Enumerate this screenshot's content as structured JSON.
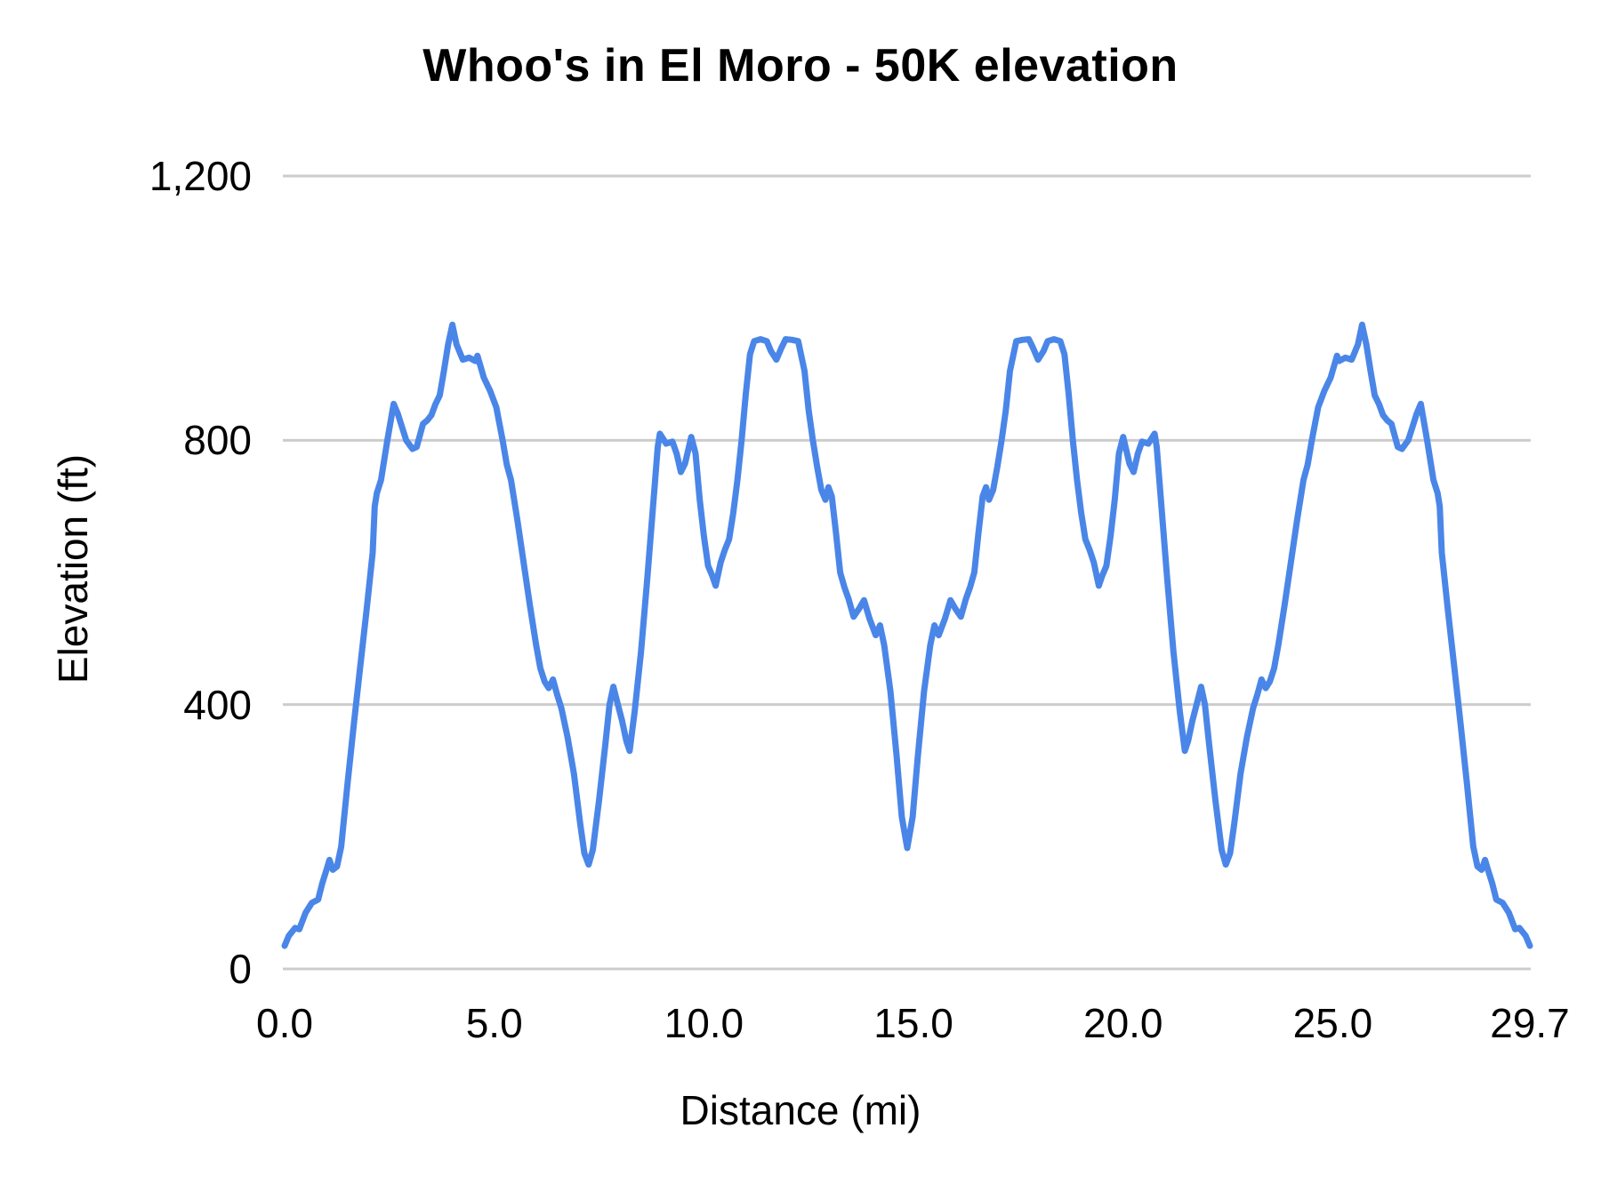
{
  "title": "Whoo's in El Moro - 50K elevation",
  "colors": {
    "line": "#4a86e8",
    "grid": "#cccccc",
    "text": "#000000",
    "background": "#ffffff"
  },
  "chart_data": {
    "type": "line",
    "title": "Whoo's in El Moro - 50K elevation",
    "xlabel": "Distance (mi)",
    "ylabel": "Elevation (ft)",
    "xlim": [
      0,
      29.7
    ],
    "ylim": [
      0,
      1200
    ],
    "grid": "horizontal-only",
    "legend": false,
    "xticks": [
      {
        "label": "0.0",
        "value": 0
      },
      {
        "label": "5.0",
        "value": 5
      },
      {
        "label": "10.0",
        "value": 10
      },
      {
        "label": "15.0",
        "value": 15
      },
      {
        "label": "20.0",
        "value": 20
      },
      {
        "label": "25.0",
        "value": 25
      },
      {
        "label": "29.7",
        "value": 29.7
      }
    ],
    "yticks": [
      {
        "label": "0",
        "value": 0
      },
      {
        "label": "400",
        "value": 400
      },
      {
        "label": "800",
        "value": 800
      },
      {
        "label": "1,200",
        "value": 1200
      }
    ],
    "series": [
      {
        "name": "Elevation",
        "color": "#4a86e8",
        "points": [
          [
            0.0,
            35
          ],
          [
            0.1,
            50
          ],
          [
            0.25,
            62
          ],
          [
            0.35,
            60
          ],
          [
            0.5,
            85
          ],
          [
            0.65,
            100
          ],
          [
            0.8,
            105
          ],
          [
            0.9,
            130
          ],
          [
            1.0,
            150
          ],
          [
            1.07,
            165
          ],
          [
            1.15,
            150
          ],
          [
            1.25,
            155
          ],
          [
            1.35,
            185
          ],
          [
            1.5,
            280
          ],
          [
            1.65,
            370
          ],
          [
            1.8,
            455
          ],
          [
            1.95,
            540
          ],
          [
            2.1,
            630
          ],
          [
            2.15,
            700
          ],
          [
            2.2,
            720
          ],
          [
            2.3,
            740
          ],
          [
            2.45,
            800
          ],
          [
            2.6,
            855
          ],
          [
            2.7,
            840
          ],
          [
            2.8,
            820
          ],
          [
            2.9,
            800
          ],
          [
            3.05,
            787
          ],
          [
            3.15,
            790
          ],
          [
            3.3,
            825
          ],
          [
            3.4,
            830
          ],
          [
            3.5,
            838
          ],
          [
            3.6,
            855
          ],
          [
            3.7,
            868
          ],
          [
            3.8,
            905
          ],
          [
            3.9,
            945
          ],
          [
            4.0,
            975
          ],
          [
            4.1,
            945
          ],
          [
            4.25,
            922
          ],
          [
            4.4,
            925
          ],
          [
            4.55,
            920
          ],
          [
            4.6,
            928
          ],
          [
            4.75,
            895
          ],
          [
            4.9,
            875
          ],
          [
            5.05,
            850
          ],
          [
            5.2,
            800
          ],
          [
            5.3,
            763
          ],
          [
            5.4,
            740
          ],
          [
            5.55,
            680
          ],
          [
            5.7,
            615
          ],
          [
            5.85,
            550
          ],
          [
            6.0,
            490
          ],
          [
            6.1,
            455
          ],
          [
            6.2,
            435
          ],
          [
            6.3,
            425
          ],
          [
            6.4,
            438
          ],
          [
            6.5,
            415
          ],
          [
            6.6,
            395
          ],
          [
            6.75,
            350
          ],
          [
            6.9,
            295
          ],
          [
            7.05,
            220
          ],
          [
            7.15,
            175
          ],
          [
            7.25,
            158
          ],
          [
            7.35,
            180
          ],
          [
            7.5,
            255
          ],
          [
            7.65,
            340
          ],
          [
            7.75,
            400
          ],
          [
            7.84,
            427
          ],
          [
            7.95,
            400
          ],
          [
            8.05,
            375
          ],
          [
            8.15,
            345
          ],
          [
            8.23,
            330
          ],
          [
            8.35,
            390
          ],
          [
            8.5,
            480
          ],
          [
            8.65,
            590
          ],
          [
            8.8,
            710
          ],
          [
            8.9,
            790
          ],
          [
            8.95,
            810
          ],
          [
            9.1,
            795
          ],
          [
            9.25,
            798
          ],
          [
            9.35,
            780
          ],
          [
            9.45,
            752
          ],
          [
            9.55,
            765
          ],
          [
            9.7,
            805
          ],
          [
            9.8,
            780
          ],
          [
            9.9,
            710
          ],
          [
            10.0,
            655
          ],
          [
            10.1,
            610
          ],
          [
            10.2,
            595
          ],
          [
            10.28,
            580
          ],
          [
            10.4,
            615
          ],
          [
            10.5,
            634
          ],
          [
            10.6,
            650
          ],
          [
            10.7,
            690
          ],
          [
            10.8,
            740
          ],
          [
            10.9,
            800
          ],
          [
            11.0,
            870
          ],
          [
            11.1,
            930
          ],
          [
            11.2,
            950
          ],
          [
            11.35,
            953
          ],
          [
            11.5,
            950
          ],
          [
            11.6,
            935
          ],
          [
            11.73,
            922
          ],
          [
            11.85,
            940
          ],
          [
            11.95,
            953
          ],
          [
            12.1,
            952
          ],
          [
            12.25,
            950
          ],
          [
            12.4,
            905
          ],
          [
            12.5,
            845
          ],
          [
            12.6,
            800
          ],
          [
            12.7,
            760
          ],
          [
            12.8,
            725
          ],
          [
            12.9,
            710
          ],
          [
            12.97,
            729
          ],
          [
            13.05,
            715
          ],
          [
            13.15,
            660
          ],
          [
            13.25,
            600
          ],
          [
            13.35,
            578
          ],
          [
            13.45,
            560
          ],
          [
            13.57,
            533
          ],
          [
            13.7,
            545
          ],
          [
            13.82,
            558
          ],
          [
            13.95,
            530
          ],
          [
            14.1,
            505
          ],
          [
            14.2,
            520
          ],
          [
            14.3,
            490
          ],
          [
            14.45,
            420
          ],
          [
            14.6,
            320
          ],
          [
            14.72,
            230
          ],
          [
            14.85,
            183
          ],
          [
            14.98,
            230
          ],
          [
            15.1,
            320
          ],
          [
            15.25,
            420
          ],
          [
            15.4,
            490
          ],
          [
            15.5,
            520
          ],
          [
            15.6,
            505
          ],
          [
            15.75,
            530
          ],
          [
            15.88,
            558
          ],
          [
            16.0,
            545
          ],
          [
            16.13,
            533
          ],
          [
            16.25,
            560
          ],
          [
            16.35,
            578
          ],
          [
            16.45,
            600
          ],
          [
            16.55,
            660
          ],
          [
            16.65,
            715
          ],
          [
            16.73,
            729
          ],
          [
            16.8,
            710
          ],
          [
            16.9,
            725
          ],
          [
            17.0,
            760
          ],
          [
            17.1,
            800
          ],
          [
            17.2,
            845
          ],
          [
            17.3,
            905
          ],
          [
            17.45,
            950
          ],
          [
            17.6,
            952
          ],
          [
            17.75,
            953
          ],
          [
            17.85,
            940
          ],
          [
            17.97,
            922
          ],
          [
            18.1,
            935
          ],
          [
            18.2,
            950
          ],
          [
            18.35,
            953
          ],
          [
            18.5,
            950
          ],
          [
            18.6,
            930
          ],
          [
            18.7,
            870
          ],
          [
            18.8,
            800
          ],
          [
            18.9,
            740
          ],
          [
            19.0,
            690
          ],
          [
            19.1,
            650
          ],
          [
            19.2,
            634
          ],
          [
            19.3,
            615
          ],
          [
            19.42,
            580
          ],
          [
            19.5,
            595
          ],
          [
            19.6,
            610
          ],
          [
            19.7,
            655
          ],
          [
            19.8,
            710
          ],
          [
            19.9,
            780
          ],
          [
            20.0,
            805
          ],
          [
            20.15,
            765
          ],
          [
            20.25,
            752
          ],
          [
            20.35,
            780
          ],
          [
            20.45,
            798
          ],
          [
            20.6,
            795
          ],
          [
            20.75,
            810
          ],
          [
            20.8,
            790
          ],
          [
            20.9,
            710
          ],
          [
            21.05,
            590
          ],
          [
            21.2,
            480
          ],
          [
            21.35,
            390
          ],
          [
            21.47,
            330
          ],
          [
            21.55,
            345
          ],
          [
            21.65,
            375
          ],
          [
            21.75,
            400
          ],
          [
            21.86,
            427
          ],
          [
            21.95,
            400
          ],
          [
            22.05,
            340
          ],
          [
            22.2,
            255
          ],
          [
            22.35,
            180
          ],
          [
            22.45,
            158
          ],
          [
            22.55,
            175
          ],
          [
            22.65,
            220
          ],
          [
            22.8,
            295
          ],
          [
            22.95,
            350
          ],
          [
            23.1,
            395
          ],
          [
            23.2,
            415
          ],
          [
            23.3,
            438
          ],
          [
            23.4,
            425
          ],
          [
            23.5,
            435
          ],
          [
            23.6,
            455
          ],
          [
            23.7,
            490
          ],
          [
            23.85,
            550
          ],
          [
            24.0,
            615
          ],
          [
            24.15,
            680
          ],
          [
            24.3,
            740
          ],
          [
            24.4,
            763
          ],
          [
            24.5,
            800
          ],
          [
            24.65,
            850
          ],
          [
            24.8,
            875
          ],
          [
            24.95,
            895
          ],
          [
            25.1,
            928
          ],
          [
            25.15,
            920
          ],
          [
            25.3,
            925
          ],
          [
            25.45,
            922
          ],
          [
            25.6,
            945
          ],
          [
            25.7,
            975
          ],
          [
            25.8,
            945
          ],
          [
            25.9,
            905
          ],
          [
            26.0,
            868
          ],
          [
            26.1,
            855
          ],
          [
            26.2,
            838
          ],
          [
            26.3,
            830
          ],
          [
            26.4,
            825
          ],
          [
            26.55,
            790
          ],
          [
            26.65,
            787
          ],
          [
            26.8,
            800
          ],
          [
            26.9,
            820
          ],
          [
            27.0,
            840
          ],
          [
            27.1,
            855
          ],
          [
            27.25,
            800
          ],
          [
            27.4,
            740
          ],
          [
            27.5,
            720
          ],
          [
            27.55,
            700
          ],
          [
            27.6,
            630
          ],
          [
            27.75,
            540
          ],
          [
            27.9,
            455
          ],
          [
            28.05,
            370
          ],
          [
            28.2,
            280
          ],
          [
            28.35,
            185
          ],
          [
            28.45,
            155
          ],
          [
            28.55,
            150
          ],
          [
            28.63,
            165
          ],
          [
            28.7,
            150
          ],
          [
            28.8,
            130
          ],
          [
            28.9,
            105
          ],
          [
            29.05,
            100
          ],
          [
            29.2,
            85
          ],
          [
            29.35,
            60
          ],
          [
            29.45,
            62
          ],
          [
            29.6,
            50
          ],
          [
            29.7,
            35
          ]
        ]
      }
    ]
  }
}
